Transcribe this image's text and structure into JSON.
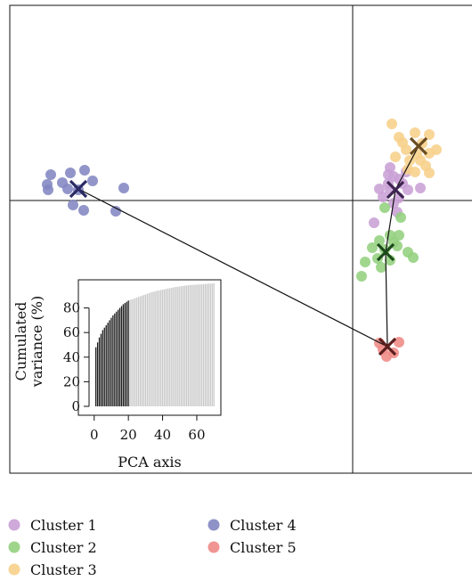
{
  "chart_data": [
    {
      "type": "scatter",
      "description_role": "main PCA scatter with cluster centroids",
      "grid": false,
      "legend_position": "bottom",
      "series": [
        {
          "name": "Cluster 1",
          "color": "#c9a0d6",
          "points": [
            [
              438,
              188
            ],
            [
              442,
              198
            ],
            [
              436,
              206
            ],
            [
              448,
              201
            ],
            [
              456,
              193
            ],
            [
              426,
              212
            ],
            [
              438,
              213
            ],
            [
              458,
              213
            ],
            [
              472,
              211
            ],
            [
              448,
              222
            ],
            [
              446,
              238
            ],
            [
              420,
              250
            ],
            [
              436,
              196
            ],
            [
              452,
              206
            ],
            [
              430,
              221
            ],
            [
              442,
              228
            ]
          ]
        },
        {
          "name": "Cluster 2",
          "color": "#93d07e",
          "points": [
            [
              432,
              233
            ],
            [
              450,
              244
            ],
            [
              438,
              264
            ],
            [
              426,
              270
            ],
            [
              442,
              272
            ],
            [
              418,
              278
            ],
            [
              432,
              280
            ],
            [
              446,
              276
            ],
            [
              458,
              283
            ],
            [
              424,
              290
            ],
            [
              438,
              292
            ],
            [
              410,
              294
            ],
            [
              464,
              289
            ],
            [
              448,
              264
            ],
            [
              406,
              310
            ],
            [
              428,
              300
            ]
          ]
        },
        {
          "name": "Cluster 3",
          "color": "#f7d08a",
          "points": [
            [
              440,
              139
            ],
            [
              466,
              149
            ],
            [
              482,
              151
            ],
            [
              448,
              154
            ],
            [
              474,
              161
            ],
            [
              490,
              168
            ],
            [
              456,
              168
            ],
            [
              468,
              173
            ],
            [
              482,
              172
            ],
            [
              444,
              176
            ],
            [
              460,
              180
            ],
            [
              478,
              186
            ],
            [
              458,
              190
            ],
            [
              466,
              193
            ],
            [
              482,
              194
            ],
            [
              452,
              160
            ],
            [
              472,
              180
            ]
          ]
        },
        {
          "name": "Cluster 4",
          "color": "#8286c1",
          "points": [
            [
              57,
              196
            ],
            [
              79,
              194
            ],
            [
              95,
              191
            ],
            [
              104,
              203
            ],
            [
              53,
              207
            ],
            [
              54,
              213
            ],
            [
              76,
              212
            ],
            [
              88,
              213
            ],
            [
              139,
              211
            ],
            [
              82,
              230
            ],
            [
              94,
              236
            ],
            [
              130,
              237
            ],
            [
              70,
              205
            ]
          ]
        },
        {
          "name": "Cluster 5",
          "color": "#ef8a86",
          "points": [
            [
              426,
              385
            ],
            [
              448,
              384
            ],
            [
              430,
              392
            ],
            [
              442,
              396
            ],
            [
              434,
              400
            ]
          ]
        }
      ],
      "centroids": [
        {
          "cluster": "Cluster 4",
          "color": "#2a2a66",
          "x": 88,
          "y": 212
        },
        {
          "cluster": "Cluster 1",
          "color": "#3e2450",
          "x": 444,
          "y": 213
        },
        {
          "cluster": "Cluster 3",
          "color": "#6a4c20",
          "x": 470,
          "y": 164
        },
        {
          "cluster": "Cluster 2",
          "color": "#1d4a1a",
          "x": 433,
          "y": 283
        },
        {
          "cluster": "Cluster 5",
          "color": "#5a1e1c",
          "x": 435,
          "y": 389
        }
      ],
      "centroid_links": [
        [
          "Cluster 4",
          "Cluster 5"
        ],
        [
          "Cluster 5",
          "Cluster 2"
        ],
        [
          "Cluster 2",
          "Cluster 1"
        ],
        [
          "Cluster 1",
          "Cluster 3"
        ]
      ]
    },
    {
      "type": "bar",
      "description_role": "inset cumulated variance vs PCA axis",
      "xlabel": "PCA axis",
      "ylabel_lines": [
        "Cumulated",
        "variance (%)"
      ],
      "xlim": [
        -3,
        72
      ],
      "ylim": [
        0,
        100
      ],
      "x_ticks": [
        0,
        20,
        40,
        60
      ],
      "y_ticks": [
        0,
        20,
        40,
        60,
        80
      ],
      "n_axes": 70,
      "dark_until": 20,
      "dark_color": "#1a1a1a",
      "light_color": "#c8c8c8",
      "values": [
        48,
        52,
        56,
        59,
        62,
        64,
        66,
        68,
        70,
        72,
        74,
        75.5,
        77,
        78.5,
        80,
        81.5,
        83,
        84,
        85,
        86,
        86.5,
        87,
        87.5,
        88,
        88.5,
        89,
        89.5,
        90,
        90.5,
        91,
        91.5,
        92,
        92.5,
        93,
        93.3,
        93.7,
        94,
        94.3,
        94.6,
        94.9,
        95.2,
        95.5,
        95.8,
        96,
        96.3,
        96.6,
        96.9,
        97.1,
        97.3,
        97.5,
        97.7,
        97.9,
        98.1,
        98.3,
        98.5,
        98.6,
        98.7,
        98.8,
        98.9,
        99,
        99.1,
        99.2,
        99.3,
        99.4,
        99.5,
        99.6,
        99.7,
        99.8,
        99.9,
        100
      ]
    }
  ],
  "legend": {
    "items": [
      {
        "label": "Cluster 1",
        "color": "#c9a0d6"
      },
      {
        "label": "Cluster 2",
        "color": "#93d07e"
      },
      {
        "label": "Cluster 3",
        "color": "#f7d08a"
      },
      {
        "label": "Cluster 4",
        "color": "#8286c1"
      },
      {
        "label": "Cluster 5",
        "color": "#ef8a86"
      }
    ]
  }
}
